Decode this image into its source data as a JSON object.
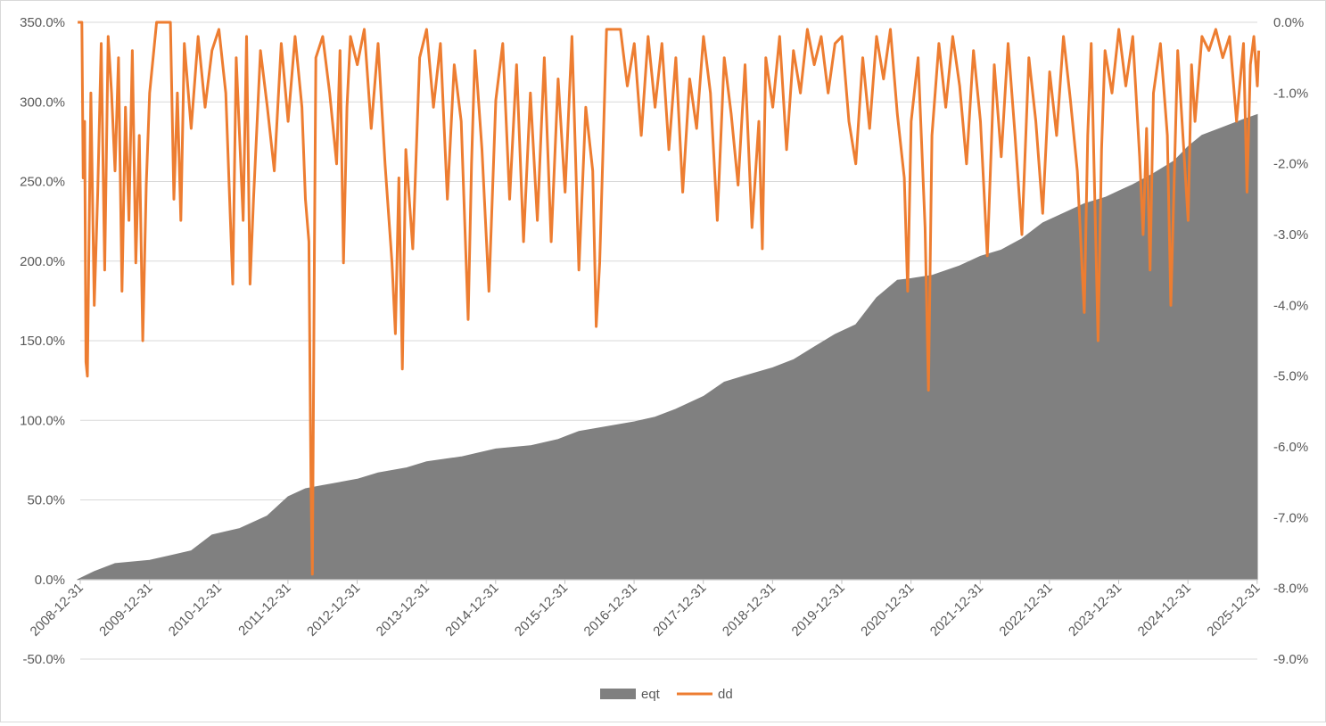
{
  "chart_data": {
    "type": "area+line",
    "title": "",
    "xlabel": "",
    "ylabel": "",
    "x_ticks": [
      "2008-12-31",
      "2009-12-31",
      "2010-12-31",
      "2011-12-31",
      "2012-12-31",
      "2013-12-31",
      "2014-12-31",
      "2015-12-31",
      "2016-12-31",
      "2017-12-31",
      "2018-12-31",
      "2019-12-31",
      "2020-12-31",
      "2021-12-31",
      "2022-12-31",
      "2023-12-31",
      "2024-12-31",
      "2025-12-31"
    ],
    "y_left": {
      "ylim": [
        -50,
        350
      ],
      "ticks": [
        "350.0%",
        "300.0%",
        "250.0%",
        "200.0%",
        "150.0%",
        "100.0%",
        "50.0%",
        "0.0%",
        "-50.0%"
      ]
    },
    "y_right": {
      "ylim": [
        -9,
        0
      ],
      "ticks": [
        "0.0%",
        "-1.0%",
        "-2.0%",
        "-3.0%",
        "-4.0%",
        "-5.0%",
        "-6.0%",
        "-7.0%",
        "-8.0%",
        "-9.0%"
      ]
    },
    "grid": true,
    "legend": "bottom-center",
    "series": [
      {
        "name": "eqt",
        "type": "area",
        "axis": "left",
        "color": "#808080",
        "unit": "%",
        "points": [
          [
            2008.96,
            0
          ],
          [
            2009.2,
            5
          ],
          [
            2009.5,
            10
          ],
          [
            2010.0,
            12
          ],
          [
            2010.3,
            15
          ],
          [
            2010.6,
            18
          ],
          [
            2010.9,
            28
          ],
          [
            2011.3,
            32
          ],
          [
            2011.7,
            40
          ],
          [
            2012.0,
            52
          ],
          [
            2012.25,
            57
          ],
          [
            2012.5,
            59
          ],
          [
            2013.0,
            63
          ],
          [
            2013.3,
            67
          ],
          [
            2013.7,
            70
          ],
          [
            2014.0,
            74
          ],
          [
            2014.5,
            77
          ],
          [
            2015.0,
            82
          ],
          [
            2015.5,
            84
          ],
          [
            2015.9,
            88
          ],
          [
            2016.2,
            93
          ],
          [
            2016.6,
            96
          ],
          [
            2017.0,
            99
          ],
          [
            2017.3,
            102
          ],
          [
            2017.6,
            107
          ],
          [
            2018.0,
            115
          ],
          [
            2018.3,
            124
          ],
          [
            2018.6,
            128
          ],
          [
            2019.0,
            133
          ],
          [
            2019.3,
            138
          ],
          [
            2019.6,
            146
          ],
          [
            2019.9,
            154
          ],
          [
            2020.2,
            160
          ],
          [
            2020.5,
            177
          ],
          [
            2020.8,
            188
          ],
          [
            2021.0,
            189
          ],
          [
            2021.3,
            191
          ],
          [
            2021.7,
            197
          ],
          [
            2022.0,
            203
          ],
          [
            2022.3,
            207
          ],
          [
            2022.6,
            214
          ],
          [
            2022.9,
            224
          ],
          [
            2023.2,
            230
          ],
          [
            2023.5,
            236
          ],
          [
            2023.8,
            240
          ],
          [
            2024.0,
            244
          ],
          [
            2024.2,
            248
          ],
          [
            2024.5,
            255
          ],
          [
            2024.8,
            263
          ],
          [
            2025.0,
            272
          ],
          [
            2025.2,
            279
          ],
          [
            2025.5,
            284
          ],
          [
            2025.8,
            289
          ],
          [
            2026.0,
            292
          ]
        ]
      },
      {
        "name": "dd",
        "type": "line",
        "axis": "right",
        "color": "#ED7D31",
        "unit": "%",
        "points": [
          [
            2008.96,
            0
          ],
          [
            2009.02,
            0
          ],
          [
            2009.04,
            -2.2
          ],
          [
            2009.06,
            -1.4
          ],
          [
            2009.08,
            -4.8
          ],
          [
            2009.1,
            -5.0
          ],
          [
            2009.12,
            -3.4
          ],
          [
            2009.15,
            -1.0
          ],
          [
            2009.2,
            -4.0
          ],
          [
            2009.25,
            -2.4
          ],
          [
            2009.3,
            -0.3
          ],
          [
            2009.35,
            -3.5
          ],
          [
            2009.4,
            -0.2
          ],
          [
            2009.45,
            -1.0
          ],
          [
            2009.5,
            -2.1
          ],
          [
            2009.55,
            -0.5
          ],
          [
            2009.6,
            -3.8
          ],
          [
            2009.65,
            -1.2
          ],
          [
            2009.7,
            -2.8
          ],
          [
            2009.75,
            -0.4
          ],
          [
            2009.8,
            -3.4
          ],
          [
            2009.85,
            -1.6
          ],
          [
            2009.9,
            -4.5
          ],
          [
            2009.95,
            -2.3
          ],
          [
            2010.0,
            -1.0
          ],
          [
            2010.1,
            0
          ],
          [
            2010.3,
            0
          ],
          [
            2010.35,
            -2.5
          ],
          [
            2010.4,
            -1.0
          ],
          [
            2010.45,
            -2.8
          ],
          [
            2010.5,
            -0.3
          ],
          [
            2010.6,
            -1.5
          ],
          [
            2010.7,
            -0.2
          ],
          [
            2010.8,
            -1.2
          ],
          [
            2010.9,
            -0.4
          ],
          [
            2011.0,
            -0.1
          ],
          [
            2011.1,
            -1.0
          ],
          [
            2011.2,
            -3.7
          ],
          [
            2011.25,
            -0.5
          ],
          [
            2011.35,
            -2.8
          ],
          [
            2011.4,
            -0.2
          ],
          [
            2011.45,
            -3.7
          ],
          [
            2011.5,
            -2.5
          ],
          [
            2011.6,
            -0.4
          ],
          [
            2011.7,
            -1.2
          ],
          [
            2011.8,
            -2.1
          ],
          [
            2011.9,
            -0.3
          ],
          [
            2012.0,
            -1.4
          ],
          [
            2012.1,
            -0.2
          ],
          [
            2012.2,
            -1.2
          ],
          [
            2012.25,
            -2.5
          ],
          [
            2012.3,
            -3.1
          ],
          [
            2012.33,
            -6.5
          ],
          [
            2012.35,
            -7.8
          ],
          [
            2012.38,
            -3.2
          ],
          [
            2012.4,
            -0.5
          ],
          [
            2012.5,
            -0.2
          ],
          [
            2012.6,
            -1.0
          ],
          [
            2012.7,
            -2.0
          ],
          [
            2012.75,
            -0.4
          ],
          [
            2012.8,
            -3.4
          ],
          [
            2012.85,
            -1.2
          ],
          [
            2012.9,
            -0.2
          ],
          [
            2013.0,
            -0.6
          ],
          [
            2013.1,
            -0.1
          ],
          [
            2013.2,
            -1.5
          ],
          [
            2013.3,
            -0.3
          ],
          [
            2013.4,
            -2.0
          ],
          [
            2013.5,
            -3.4
          ],
          [
            2013.55,
            -4.4
          ],
          [
            2013.6,
            -2.2
          ],
          [
            2013.65,
            -4.9
          ],
          [
            2013.7,
            -1.8
          ],
          [
            2013.8,
            -3.2
          ],
          [
            2013.9,
            -0.5
          ],
          [
            2014.0,
            -0.1
          ],
          [
            2014.1,
            -1.2
          ],
          [
            2014.2,
            -0.3
          ],
          [
            2014.3,
            -2.5
          ],
          [
            2014.4,
            -0.6
          ],
          [
            2014.5,
            -1.4
          ],
          [
            2014.6,
            -4.2
          ],
          [
            2014.65,
            -2.0
          ],
          [
            2014.7,
            -0.4
          ],
          [
            2014.8,
            -1.8
          ],
          [
            2014.9,
            -3.8
          ],
          [
            2015.0,
            -1.1
          ],
          [
            2015.1,
            -0.3
          ],
          [
            2015.2,
            -2.5
          ],
          [
            2015.3,
            -0.6
          ],
          [
            2015.4,
            -3.1
          ],
          [
            2015.5,
            -1.0
          ],
          [
            2015.6,
            -2.8
          ],
          [
            2015.7,
            -0.5
          ],
          [
            2015.8,
            -3.1
          ],
          [
            2015.9,
            -0.8
          ],
          [
            2016.0,
            -2.4
          ],
          [
            2016.1,
            -0.2
          ],
          [
            2016.2,
            -3.5
          ],
          [
            2016.3,
            -1.2
          ],
          [
            2016.4,
            -2.1
          ],
          [
            2016.45,
            -4.3
          ],
          [
            2016.5,
            -3.4
          ],
          [
            2016.6,
            -0.1
          ],
          [
            2016.8,
            -0.1
          ],
          [
            2016.9,
            -0.9
          ],
          [
            2017.0,
            -0.3
          ],
          [
            2017.1,
            -1.6
          ],
          [
            2017.2,
            -0.2
          ],
          [
            2017.3,
            -1.2
          ],
          [
            2017.4,
            -0.3
          ],
          [
            2017.5,
            -1.8
          ],
          [
            2017.6,
            -0.5
          ],
          [
            2017.7,
            -2.4
          ],
          [
            2017.8,
            -0.8
          ],
          [
            2017.9,
            -1.5
          ],
          [
            2018.0,
            -0.2
          ],
          [
            2018.1,
            -1.0
          ],
          [
            2018.2,
            -2.8
          ],
          [
            2018.3,
            -0.5
          ],
          [
            2018.4,
            -1.3
          ],
          [
            2018.5,
            -2.3
          ],
          [
            2018.6,
            -0.6
          ],
          [
            2018.7,
            -2.9
          ],
          [
            2018.8,
            -1.4
          ],
          [
            2018.85,
            -3.2
          ],
          [
            2018.9,
            -0.5
          ],
          [
            2019.0,
            -1.2
          ],
          [
            2019.1,
            -0.2
          ],
          [
            2019.2,
            -1.8
          ],
          [
            2019.3,
            -0.4
          ],
          [
            2019.4,
            -1.0
          ],
          [
            2019.5,
            -0.1
          ],
          [
            2019.6,
            -0.6
          ],
          [
            2019.7,
            -0.2
          ],
          [
            2019.8,
            -1.0
          ],
          [
            2019.9,
            -0.3
          ],
          [
            2020.0,
            -0.2
          ],
          [
            2020.1,
            -1.4
          ],
          [
            2020.2,
            -2.0
          ],
          [
            2020.3,
            -0.5
          ],
          [
            2020.4,
            -1.5
          ],
          [
            2020.5,
            -0.2
          ],
          [
            2020.6,
            -0.8
          ],
          [
            2020.7,
            -0.1
          ],
          [
            2020.8,
            -1.3
          ],
          [
            2020.9,
            -2.2
          ],
          [
            2020.95,
            -3.8
          ],
          [
            2021.0,
            -1.4
          ],
          [
            2021.1,
            -0.5
          ],
          [
            2021.2,
            -2.9
          ],
          [
            2021.25,
            -5.2
          ],
          [
            2021.3,
            -1.6
          ],
          [
            2021.4,
            -0.3
          ],
          [
            2021.5,
            -1.2
          ],
          [
            2021.6,
            -0.2
          ],
          [
            2021.7,
            -0.9
          ],
          [
            2021.8,
            -2.0
          ],
          [
            2021.9,
            -0.4
          ],
          [
            2022.0,
            -1.4
          ],
          [
            2022.1,
            -3.3
          ],
          [
            2022.2,
            -0.6
          ],
          [
            2022.3,
            -1.9
          ],
          [
            2022.4,
            -0.3
          ],
          [
            2022.5,
            -1.6
          ],
          [
            2022.6,
            -3.0
          ],
          [
            2022.7,
            -0.5
          ],
          [
            2022.8,
            -1.4
          ],
          [
            2022.9,
            -2.7
          ],
          [
            2023.0,
            -0.7
          ],
          [
            2023.1,
            -1.6
          ],
          [
            2023.2,
            -0.2
          ],
          [
            2023.3,
            -1.1
          ],
          [
            2023.4,
            -2.1
          ],
          [
            2023.5,
            -4.1
          ],
          [
            2023.55,
            -1.6
          ],
          [
            2023.6,
            -0.3
          ],
          [
            2023.7,
            -4.5
          ],
          [
            2023.75,
            -1.8
          ],
          [
            2023.8,
            -0.4
          ],
          [
            2023.9,
            -1.0
          ],
          [
            2024.0,
            -0.1
          ],
          [
            2024.1,
            -0.9
          ],
          [
            2024.2,
            -0.2
          ],
          [
            2024.3,
            -1.9
          ],
          [
            2024.35,
            -3.0
          ],
          [
            2024.4,
            -1.5
          ],
          [
            2024.45,
            -3.5
          ],
          [
            2024.5,
            -1.0
          ],
          [
            2024.6,
            -0.3
          ],
          [
            2024.7,
            -1.6
          ],
          [
            2024.75,
            -4.0
          ],
          [
            2024.8,
            -2.2
          ],
          [
            2024.85,
            -0.4
          ],
          [
            2024.9,
            -1.2
          ],
          [
            2025.0,
            -2.8
          ],
          [
            2025.05,
            -0.6
          ],
          [
            2025.1,
            -1.4
          ],
          [
            2025.2,
            -0.2
          ],
          [
            2025.3,
            -0.4
          ],
          [
            2025.4,
            -0.1
          ],
          [
            2025.5,
            -0.5
          ],
          [
            2025.6,
            -0.2
          ],
          [
            2025.7,
            -1.4
          ],
          [
            2025.8,
            -0.3
          ],
          [
            2025.85,
            -2.4
          ],
          [
            2025.9,
            -0.6
          ],
          [
            2025.95,
            -0.2
          ],
          [
            2026.0,
            -0.9
          ],
          [
            2026.02,
            -0.4
          ]
        ]
      }
    ]
  }
}
